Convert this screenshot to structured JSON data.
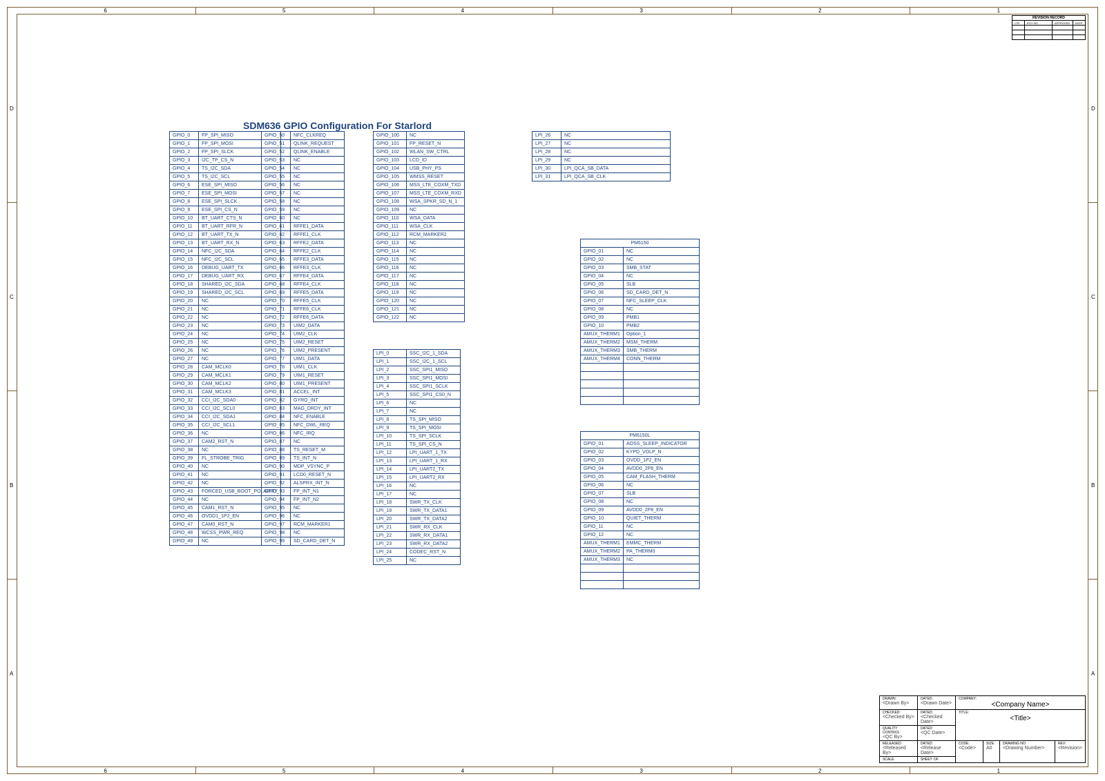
{
  "colors": {
    "border": "#7a5c36",
    "cell_border": "#1e437c",
    "text": "#1e437c",
    "title_text": "#1e437c",
    "bg": "#ffffff"
  },
  "edge_rows": [
    "A",
    "B",
    "C",
    "D"
  ],
  "edge_cols": [
    "1",
    "2",
    "3",
    "4",
    "5",
    "6"
  ],
  "main_title": "SDM636 GPIO Configuration For Starlord",
  "gpio_col1": [
    [
      "GPIO_0",
      "FP_SPI_MISO"
    ],
    [
      "GPIO_1",
      "FP_SPI_MOSI"
    ],
    [
      "GPIO_2",
      "FP_SPI_SLCK"
    ],
    [
      "GPIO_3",
      "I2C_TP_CS_N"
    ],
    [
      "GPIO_4",
      "TS_I2C_SDA"
    ],
    [
      "GPIO_5",
      "TS_I2C_SCL"
    ],
    [
      "GPIO_6",
      "ESE_SPI_MISO"
    ],
    [
      "GPIO_7",
      "ESE_SPI_MOSI"
    ],
    [
      "GPIO_8",
      "ESE_SPI_SLCK"
    ],
    [
      "GPIO_9",
      "ESE_SPI_CS_N"
    ],
    [
      "GPIO_10",
      "BT_UART_CTS_N"
    ],
    [
      "GPIO_11",
      "BT_UART_RFR_N"
    ],
    [
      "GPIO_12",
      "BT_UART_TX_N"
    ],
    [
      "GPIO_13",
      "BT_UART_RX_N"
    ],
    [
      "GPIO_14",
      "NFC_I2C_SDA"
    ],
    [
      "GPIO_15",
      "NFC_I2C_SCL"
    ],
    [
      "GPIO_16",
      "DEBUG_UART_TX"
    ],
    [
      "GPIO_17",
      "DEBUG_UART_RX"
    ],
    [
      "GPIO_18",
      "SHARED_I2C_SDA"
    ],
    [
      "GPIO_19",
      "SHARED_I2C_SCL"
    ],
    [
      "GPIO_20",
      "NC"
    ],
    [
      "GPIO_21",
      "NC"
    ],
    [
      "GPIO_22",
      "NC"
    ],
    [
      "GPIO_23",
      "NC"
    ],
    [
      "GPIO_24",
      "NC"
    ],
    [
      "GPIO_25",
      "NC"
    ],
    [
      "GPIO_26",
      "NC"
    ],
    [
      "GPIO_27",
      "NC"
    ],
    [
      "GPIO_28",
      "CAM_MCLK0"
    ],
    [
      "GPIO_29",
      "CAM_MCLK1"
    ],
    [
      "GPIO_30",
      "CAM_MCLK2"
    ],
    [
      "GPIO_31",
      "CAM_MCLK3"
    ],
    [
      "GPIO_32",
      "CCI_I2C_SDA0"
    ],
    [
      "GPIO_33",
      "CCI_I2C_SCL0"
    ],
    [
      "GPIO_34",
      "CCI_I2C_SDA1"
    ],
    [
      "GPIO_35",
      "CCI_I2C_SCL1"
    ],
    [
      "GPIO_36",
      "NC"
    ],
    [
      "GPIO_37",
      "CAM2_RST_N"
    ],
    [
      "GPIO_38",
      "NC"
    ],
    [
      "GPIO_39",
      "FL_STROBE_TRIG"
    ],
    [
      "GPIO_40",
      "NC"
    ],
    [
      "GPIO_41",
      "NC"
    ],
    [
      "GPIO_42",
      "NC"
    ],
    [
      "GPIO_43",
      "FORCED_USB_BOOT_POLARITY"
    ],
    [
      "GPIO_44",
      "NC"
    ],
    [
      "GPIO_45",
      "CAM1_RST_N"
    ],
    [
      "GPIO_46",
      "OVDD1_1P2_EN"
    ],
    [
      "GPIO_47",
      "CAM0_RST_N"
    ],
    [
      "GPIO_48",
      "WCSS_PWR_REQ"
    ],
    [
      "GPIO_49",
      "NC"
    ]
  ],
  "gpio_col2": [
    [
      "GPIO_50",
      "NFC_CLKREQ"
    ],
    [
      "GPIO_51",
      "QLINK_REQUEST"
    ],
    [
      "GPIO_52",
      "QLINK_ENABLE"
    ],
    [
      "GPIO_53",
      "NC"
    ],
    [
      "GPIO_54",
      "NC"
    ],
    [
      "GPIO_55",
      "NC"
    ],
    [
      "GPIO_56",
      "NC"
    ],
    [
      "GPIO_57",
      "NC"
    ],
    [
      "GPIO_58",
      "NC"
    ],
    [
      "GPIO_59",
      "NC"
    ],
    [
      "GPIO_60",
      "NC"
    ],
    [
      "GPIO_61",
      "RFFE1_DATA"
    ],
    [
      "GPIO_62",
      "RFFE1_CLK"
    ],
    [
      "GPIO_63",
      "RFFE2_DATA"
    ],
    [
      "GPIO_64",
      "RFFE2_CLK"
    ],
    [
      "GPIO_65",
      "RFFE3_DATA"
    ],
    [
      "GPIO_66",
      "RFFE3_CLK"
    ],
    [
      "GPIO_67",
      "RFFE4_DATA"
    ],
    [
      "GPIO_68",
      "RFFE4_CLK"
    ],
    [
      "GPIO_69",
      "RFFE5_DATA"
    ],
    [
      "GPIO_70",
      "RFFE5_CLK"
    ],
    [
      "GPIO_71",
      "RFFE6_CLK"
    ],
    [
      "GPIO_72",
      "RFFE6_DATA"
    ],
    [
      "GPIO_73",
      "UIM2_DATA"
    ],
    [
      "GPIO_74",
      "UIM2_CLK"
    ],
    [
      "GPIO_75",
      "UIM2_RESET"
    ],
    [
      "GPIO_76",
      "UIM2_PRESENT"
    ],
    [
      "GPIO_77",
      "UIM1_DATA"
    ],
    [
      "GPIO_78",
      "UIM1_CLK"
    ],
    [
      "GPIO_79",
      "UIM1_RESET"
    ],
    [
      "GPIO_80",
      "UIM1_PRESENT"
    ],
    [
      "GPIO_81",
      "ACCEL_INT"
    ],
    [
      "GPIO_82",
      "GYRO_INT"
    ],
    [
      "GPIO_83",
      "MAG_DRDY_INT"
    ],
    [
      "GPIO_84",
      "NFC_ENABLE"
    ],
    [
      "GPIO_85",
      "NFC_DWL_REQ"
    ],
    [
      "GPIO_86",
      "NFC_IRQ"
    ],
    [
      "GPIO_87",
      "NC"
    ],
    [
      "GPIO_88",
      "TS_RESET_M"
    ],
    [
      "GPIO_89",
      "TS_INT_N"
    ],
    [
      "GPIO_90",
      "MDP_VSYNC_P"
    ],
    [
      "GPIO_91",
      "LCD0_RESET_N"
    ],
    [
      "GPIO_92",
      "ALSPRX_INT_N"
    ],
    [
      "GPIO_93",
      "FP_INT_N1"
    ],
    [
      "GPIO_94",
      "FP_INT_N2"
    ],
    [
      "GPIO_95",
      "NC"
    ],
    [
      "GPIO_96",
      "NC"
    ],
    [
      "GPIO_97",
      "RCM_MARKER1"
    ],
    [
      "GPIO_98",
      "NC"
    ],
    [
      "GPIO_99",
      "SD_CARD_DET_N"
    ]
  ],
  "gpio_col3": [
    [
      "GPIO_100",
      "NC"
    ],
    [
      "GPIO_101",
      "FP_RESET_N"
    ],
    [
      "GPIO_102",
      "WLAN_SW_CTRL"
    ],
    [
      "GPIO_103",
      "LCD_ID"
    ],
    [
      "GPIO_104",
      "USB_PHY_PS"
    ],
    [
      "GPIO_105",
      "WMSS_RESET"
    ],
    [
      "GPIO_106",
      "MSS_LTE_COXM_TXD"
    ],
    [
      "GPIO_107",
      "MSS_LTE_COXM_RXD"
    ],
    [
      "GPIO_108",
      "WSA_SPKR_SD_N_1"
    ],
    [
      "GPIO_109",
      "NC"
    ],
    [
      "GPIO_110",
      "WSA_DATA"
    ],
    [
      "GPIO_111",
      "WSA_CLK"
    ],
    [
      "GPIO_112",
      "RCM_MARKER2"
    ],
    [
      "GPIO_113",
      "NC"
    ],
    [
      "GPIO_114",
      "NC"
    ],
    [
      "GPIO_115",
      "NC"
    ],
    [
      "GPIO_116",
      "NC"
    ],
    [
      "GPIO_117",
      "NC"
    ],
    [
      "GPIO_118",
      "NC"
    ],
    [
      "GPIO_119",
      "NC"
    ],
    [
      "GPIO_120",
      "NC"
    ],
    [
      "GPIO_121",
      "NC"
    ],
    [
      "GPIO_122",
      "NC"
    ]
  ],
  "lpi_col4": [
    [
      "LPI_0",
      "SSC_I2C_1_SDA"
    ],
    [
      "LPI_1",
      "SSC_I2C_1_SCL"
    ],
    [
      "LPI_2",
      "SSC_SPI1_MISO"
    ],
    [
      "LPI_3",
      "SSC_SPI1_MOSI"
    ],
    [
      "LPI_4",
      "SSC_SPI1_SCLK"
    ],
    [
      "LPI_5",
      "SSC_SPI1_CS0_N"
    ],
    [
      "LPI_6",
      "NC"
    ],
    [
      "LPI_7",
      "NC"
    ],
    [
      "LPI_8",
      "TS_SPI_MISO"
    ],
    [
      "LPI_9",
      "TS_SPI_MOSI"
    ],
    [
      "LPI_10",
      "TS_SPI_SCLK"
    ],
    [
      "LPI_11",
      "TS_SPI_CS_N"
    ],
    [
      "LPI_12",
      "LPI_UART_1_TX"
    ],
    [
      "LPI_13",
      "LPI_UART_1_RX"
    ],
    [
      "LPI_14",
      "LPI_UART2_TX"
    ],
    [
      "LPI_15",
      "LPI_UART2_RX"
    ],
    [
      "LPI_16",
      "NC"
    ],
    [
      "LPI_17",
      "NC"
    ],
    [
      "LPI_18",
      "SWR_TX_CLK"
    ],
    [
      "LPI_19",
      "SWR_TX_DATA1"
    ],
    [
      "LPI_20",
      "SWR_TX_DATA2"
    ],
    [
      "LPI_21",
      "SWR_RX_CLK"
    ],
    [
      "LPI_22",
      "SWR_RX_DATA1"
    ],
    [
      "LPI_23",
      "SWR_RX_DATA2"
    ],
    [
      "LPI_24",
      "CODEC_RST_N"
    ],
    [
      "LPI_25",
      "NC"
    ]
  ],
  "lpi_col5": [
    [
      "LPI_26",
      "NC"
    ],
    [
      "LPI_27",
      "NC"
    ],
    [
      "LPI_28",
      "NC"
    ],
    [
      "LPI_29",
      "NC"
    ],
    [
      "LPI_30",
      "LPI_QCA_SB_DATA"
    ],
    [
      "LPI_31",
      "LPI_QCA_SB_CLK"
    ]
  ],
  "pm6150": {
    "title": "PM6150",
    "rows": [
      [
        "GPIO_01",
        "NC"
      ],
      [
        "GPIO_02",
        "NC"
      ],
      [
        "GPIO_03",
        "SMB_STAT"
      ],
      [
        "GPIO_04",
        "NC"
      ],
      [
        "GPIO_05",
        "SLB"
      ],
      [
        "GPIO_06",
        "SD_CARD_DET_N"
      ],
      [
        "GPIO_07",
        "NFC_SLEEP_CLK"
      ],
      [
        "GPIO_08",
        "NC"
      ],
      [
        "GPIO_09",
        "PMB1"
      ],
      [
        "GPIO_10",
        "PMB2"
      ],
      [
        "AMUX_THERM1",
        "Option_1"
      ],
      [
        "AMUX_THERM2",
        "MSM_THERM"
      ],
      [
        "AMUX_THERM3",
        "SMB_THERM"
      ],
      [
        "AMUX_THERM4",
        "CONN_THERM"
      ]
    ],
    "blank_rows": 5
  },
  "pm6150l": {
    "title": "PM6150L",
    "rows": [
      [
        "GPIO_01",
        "AOSS_SLEEP_INDICATOR"
      ],
      [
        "GPIO_02",
        "KYPD_VOLP_N"
      ],
      [
        "GPIO_03",
        "OVDD_1P2_EN"
      ],
      [
        "GPIO_04",
        "AVDD0_2P8_EN"
      ],
      [
        "GPIO_05",
        "CAM_FLASH_THERM"
      ],
      [
        "GPIO_06",
        "NC"
      ],
      [
        "GPIO_07",
        "SLB"
      ],
      [
        "GPIO_08",
        "NC"
      ],
      [
        "GPIO_09",
        "AVDD0_2P8_EN"
      ],
      [
        "GPIO_10",
        "QUIET_THERM"
      ],
      [
        "GPIO_11",
        "NC"
      ],
      [
        "GPIO_12",
        "NC"
      ],
      [
        "AMUX_THERM1",
        "EMMC_THERM"
      ],
      [
        "AMUX_THERM2",
        "PA_THERM0"
      ],
      [
        "AMUX_THERM3",
        "NC"
      ]
    ],
    "blank_rows": 3
  },
  "rev_small": {
    "title": "REVISION RECORD",
    "headers": [
      "LTR",
      "ECO NO.",
      "APPROVED",
      "DATE"
    ],
    "blank_rows": 3
  },
  "title_block": {
    "company": "<Company Name>",
    "title": "<Title>",
    "drawn_by": "<Drawn By>",
    "drawn_date": "<Drawn Date>",
    "checked_by": "<Checked By>",
    "checked_date": "<Checked Date>",
    "qc_label": "QUALITY CONTROL:",
    "qc_by": "<QC By>",
    "qc_date": "<QC Date>",
    "released_by": "<Released By>",
    "released_date": "<Release Date>",
    "code": "<Code>",
    "size": "A0",
    "drawing_no": "<Drawing Number>",
    "rev": "<Revision>",
    "scale": "SCALE:",
    "sheet": "SHEET:",
    "of": "OF",
    "company_label": "COMPANY:",
    "title_label": "TITLE:",
    "drawn_label": "DRAWN:",
    "dated_label": "DATED:",
    "checked_label": "CHECKED:",
    "released_label": "RELEASED:",
    "code_label": "CODE:",
    "size_label": "SIZE:",
    "drawing_no_label": "DRAWING NO:",
    "rev_label": "REV:"
  }
}
